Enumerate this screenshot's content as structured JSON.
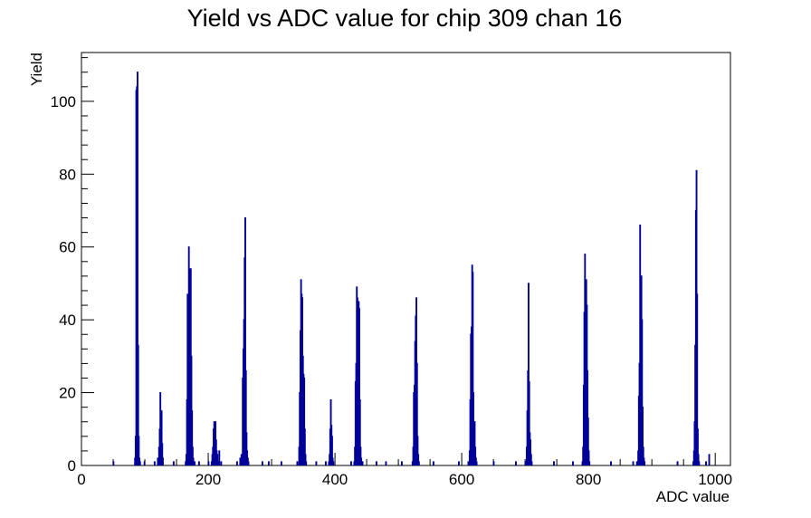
{
  "chart_data": {
    "type": "bar",
    "title": "Yield vs ADC value for chip 309 chan 16",
    "xlabel": "ADC value",
    "ylabel": "Yield",
    "xlim": [
      0,
      1024
    ],
    "ylim": [
      0,
      113.4
    ],
    "xticks": [
      0,
      200,
      400,
      600,
      800,
      1000
    ],
    "yticks": [
      0,
      20,
      40,
      60,
      80,
      100
    ],
    "grid": false,
    "legend": "none",
    "line_color": "#000099",
    "series": [
      {
        "bins": [
          [
            50,
            1
          ],
          [
            84,
            2
          ],
          [
            85,
            8
          ],
          [
            86,
            103
          ],
          [
            87,
            104
          ],
          [
            88,
            108
          ],
          [
            89,
            33
          ],
          [
            90,
            8
          ],
          [
            91,
            2
          ],
          [
            92,
            1
          ],
          [
            99,
            1
          ],
          [
            115,
            1
          ],
          [
            120,
            2
          ],
          [
            122,
            5
          ],
          [
            123,
            10
          ],
          [
            124,
            20
          ],
          [
            125,
            15
          ],
          [
            126,
            15
          ],
          [
            127,
            6
          ],
          [
            128,
            2
          ],
          [
            145,
            1
          ],
          [
            164,
            1
          ],
          [
            165,
            3
          ],
          [
            166,
            18
          ],
          [
            167,
            47
          ],
          [
            168,
            34
          ],
          [
            169,
            60
          ],
          [
            170,
            44
          ],
          [
            171,
            54
          ],
          [
            172,
            54
          ],
          [
            173,
            30
          ],
          [
            174,
            15
          ],
          [
            175,
            5
          ],
          [
            176,
            2
          ],
          [
            178,
            1
          ],
          [
            185,
            1
          ],
          [
            200,
            1
          ],
          [
            205,
            1
          ],
          [
            206,
            3
          ],
          [
            207,
            5
          ],
          [
            208,
            10
          ],
          [
            209,
            12
          ],
          [
            210,
            9
          ],
          [
            211,
            12
          ],
          [
            212,
            7
          ],
          [
            213,
            4
          ],
          [
            214,
            3
          ],
          [
            215,
            1
          ],
          [
            217,
            4
          ],
          [
            220,
            1
          ],
          [
            245,
            1
          ],
          [
            250,
            2
          ],
          [
            252,
            3
          ],
          [
            254,
            24
          ],
          [
            255,
            32
          ],
          [
            256,
            40
          ],
          [
            257,
            57
          ],
          [
            258,
            68
          ],
          [
            259,
            26
          ],
          [
            260,
            9
          ],
          [
            261,
            4
          ],
          [
            262,
            2
          ],
          [
            263,
            1
          ],
          [
            285,
            1
          ],
          [
            295,
            1
          ],
          [
            315,
            1
          ],
          [
            340,
            1
          ],
          [
            343,
            5
          ],
          [
            344,
            20
          ],
          [
            345,
            37
          ],
          [
            346,
            51
          ],
          [
            347,
            47
          ],
          [
            348,
            46
          ],
          [
            349,
            30
          ],
          [
            350,
            25
          ],
          [
            351,
            24
          ],
          [
            352,
            10
          ],
          [
            353,
            3
          ],
          [
            354,
            1
          ],
          [
            370,
            1
          ],
          [
            385,
            1
          ],
          [
            390,
            1
          ],
          [
            391,
            3
          ],
          [
            392,
            10
          ],
          [
            393,
            18
          ],
          [
            394,
            11
          ],
          [
            395,
            8
          ],
          [
            396,
            2
          ],
          [
            397,
            1
          ],
          [
            425,
            1
          ],
          [
            430,
            1
          ],
          [
            431,
            5
          ],
          [
            432,
            23
          ],
          [
            433,
            28
          ],
          [
            434,
            49
          ],
          [
            435,
            46
          ],
          [
            436,
            44
          ],
          [
            437,
            45
          ],
          [
            438,
            43
          ],
          [
            439,
            18
          ],
          [
            440,
            5
          ],
          [
            441,
            2
          ],
          [
            442,
            1
          ],
          [
            443,
            1
          ],
          [
            465,
            1
          ],
          [
            480,
            1
          ],
          [
            505,
            1
          ],
          [
            522,
            1
          ],
          [
            523,
            5
          ],
          [
            524,
            20
          ],
          [
            525,
            22
          ],
          [
            526,
            34
          ],
          [
            527,
            41
          ],
          [
            528,
            46
          ],
          [
            529,
            28
          ],
          [
            530,
            8
          ],
          [
            531,
            3
          ],
          [
            532,
            1
          ],
          [
            555,
            1
          ],
          [
            595,
            1
          ],
          [
            610,
            1
          ],
          [
            612,
            4
          ],
          [
            613,
            18
          ],
          [
            614,
            36
          ],
          [
            615,
            38
          ],
          [
            616,
            55
          ],
          [
            617,
            53
          ],
          [
            618,
            20
          ],
          [
            619,
            12
          ],
          [
            620,
            12
          ],
          [
            621,
            5
          ],
          [
            622,
            2
          ],
          [
            623,
            1
          ],
          [
            650,
            1
          ],
          [
            685,
            1
          ],
          [
            700,
            1
          ],
          [
            702,
            5
          ],
          [
            703,
            15
          ],
          [
            704,
            26
          ],
          [
            705,
            50
          ],
          [
            706,
            23
          ],
          [
            707,
            9
          ],
          [
            708,
            7
          ],
          [
            709,
            3
          ],
          [
            710,
            1
          ],
          [
            745,
            1
          ],
          [
            775,
            1
          ],
          [
            790,
            1
          ],
          [
            791,
            5
          ],
          [
            792,
            22
          ],
          [
            793,
            42
          ],
          [
            794,
            58
          ],
          [
            795,
            51
          ],
          [
            796,
            51
          ],
          [
            797,
            44
          ],
          [
            798,
            26
          ],
          [
            799,
            13
          ],
          [
            800,
            4
          ],
          [
            801,
            1
          ],
          [
            835,
            1
          ],
          [
            870,
            1
          ],
          [
            876,
            1
          ],
          [
            878,
            4
          ],
          [
            879,
            19
          ],
          [
            880,
            28
          ],
          [
            881,
            66
          ],
          [
            882,
            52
          ],
          [
            883,
            52
          ],
          [
            884,
            40
          ],
          [
            885,
            16
          ],
          [
            886,
            5
          ],
          [
            887,
            2
          ],
          [
            888,
            1
          ],
          [
            940,
            1
          ],
          [
            965,
            1
          ],
          [
            966,
            4
          ],
          [
            967,
            12
          ],
          [
            968,
            33
          ],
          [
            969,
            70
          ],
          [
            970,
            81
          ],
          [
            971,
            47
          ],
          [
            972,
            10
          ],
          [
            973,
            3
          ],
          [
            974,
            1
          ],
          [
            985,
            1
          ],
          [
            990,
            3
          ]
        ]
      }
    ]
  }
}
